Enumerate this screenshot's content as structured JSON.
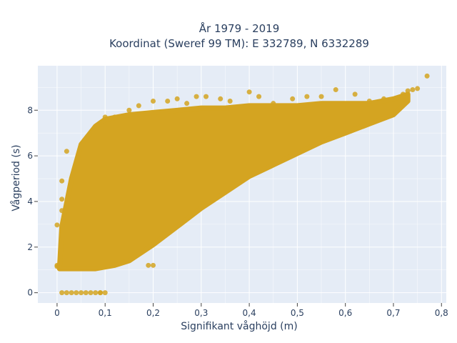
{
  "chart_data": {
    "type": "scatter",
    "title_line1": "År 1979 - 2019",
    "title_line2": "Koordinat (Sweref 99 TM): E 332789, N 6332289",
    "xlabel": "Signifikant våghöjd (m)",
    "ylabel": "Vågperiod (s)",
    "xlim": [
      -0.04,
      0.81
    ],
    "ylim": [
      -0.45,
      9.95
    ],
    "x_ticks": [
      0,
      0.1,
      0.2,
      0.3,
      0.4,
      0.5,
      0.6,
      0.7,
      0.8
    ],
    "x_tick_labels": [
      "0",
      "0,1",
      "0,2",
      "0,3",
      "0,4",
      "0,5",
      "0,6",
      "0,7",
      "0,8"
    ],
    "y_ticks": [
      0,
      2,
      4,
      6,
      8
    ],
    "y_tick_labels": [
      "0",
      "2",
      "4",
      "6",
      "8"
    ],
    "grid": true,
    "marker_color": "#D4A421",
    "plot_bg": "#E5ECF6",
    "dense_region": {
      "x": [
        0.005,
        0.01,
        0.03,
        0.05,
        0.08,
        0.1,
        0.15,
        0.2,
        0.25,
        0.3,
        0.35,
        0.4,
        0.45,
        0.5,
        0.55,
        0.6,
        0.65,
        0.7,
        0.73,
        0.73,
        0.7,
        0.65,
        0.6,
        0.55,
        0.5,
        0.45,
        0.4,
        0.35,
        0.3,
        0.25,
        0.2,
        0.15,
        0.12,
        0.08,
        0.05,
        0.02,
        0.005
      ],
      "y": [
        1.1,
        2.9,
        5.0,
        6.5,
        7.3,
        7.6,
        7.8,
        7.9,
        8.0,
        8.1,
        8.1,
        8.2,
        8.2,
        8.2,
        8.3,
        8.3,
        8.3,
        8.5,
        8.7,
        8.4,
        7.8,
        7.4,
        7.0,
        6.6,
        6.1,
        5.6,
        5.1,
        4.4,
        3.7,
        2.9,
        2.1,
        1.4,
        1.2,
        1.05,
        1.05,
        1.05,
        1.05
      ]
    },
    "points": [
      {
        "x": 0.0,
        "y": 2.97
      },
      {
        "x": 0.0,
        "y": 1.2
      },
      {
        "x": 0.0,
        "y": 1.15
      },
      {
        "x": 0.01,
        "y": 0.0
      },
      {
        "x": 0.02,
        "y": 0.0
      },
      {
        "x": 0.03,
        "y": 0.0
      },
      {
        "x": 0.04,
        "y": 0.0
      },
      {
        "x": 0.05,
        "y": 0.0
      },
      {
        "x": 0.06,
        "y": 0.0
      },
      {
        "x": 0.07,
        "y": 0.0
      },
      {
        "x": 0.08,
        "y": 0.0
      },
      {
        "x": 0.09,
        "y": 0.0
      },
      {
        "x": 0.1,
        "y": 0.0
      },
      {
        "x": 0.09,
        "y": 0.0
      },
      {
        "x": 0.77,
        "y": 9.5
      },
      {
        "x": 0.75,
        "y": 8.95
      },
      {
        "x": 0.74,
        "y": 8.9
      },
      {
        "x": 0.73,
        "y": 8.85
      },
      {
        "x": 0.72,
        "y": 8.7
      },
      {
        "x": 0.58,
        "y": 8.9
      },
      {
        "x": 0.62,
        "y": 8.7
      },
      {
        "x": 0.52,
        "y": 8.6
      },
      {
        "x": 0.55,
        "y": 8.6
      },
      {
        "x": 0.49,
        "y": 8.5
      },
      {
        "x": 0.42,
        "y": 8.6
      },
      {
        "x": 0.4,
        "y": 8.8
      },
      {
        "x": 0.34,
        "y": 8.5
      },
      {
        "x": 0.31,
        "y": 8.6
      },
      {
        "x": 0.29,
        "y": 8.6
      },
      {
        "x": 0.25,
        "y": 8.5
      },
      {
        "x": 0.23,
        "y": 8.4
      },
      {
        "x": 0.2,
        "y": 8.4
      },
      {
        "x": 0.17,
        "y": 8.2
      },
      {
        "x": 0.15,
        "y": 8.0
      },
      {
        "x": 0.02,
        "y": 6.2
      },
      {
        "x": 0.01,
        "y": 4.9
      },
      {
        "x": 0.01,
        "y": 4.1
      },
      {
        "x": 0.01,
        "y": 3.6
      },
      {
        "x": 0.2,
        "y": 1.2
      },
      {
        "x": 0.19,
        "y": 1.2
      },
      {
        "x": 0.65,
        "y": 8.4
      },
      {
        "x": 0.68,
        "y": 8.5
      },
      {
        "x": 0.45,
        "y": 8.3
      },
      {
        "x": 0.36,
        "y": 8.4
      },
      {
        "x": 0.27,
        "y": 8.3
      },
      {
        "x": 0.1,
        "y": 7.7
      },
      {
        "x": 0.12,
        "y": 7.7
      }
    ]
  }
}
